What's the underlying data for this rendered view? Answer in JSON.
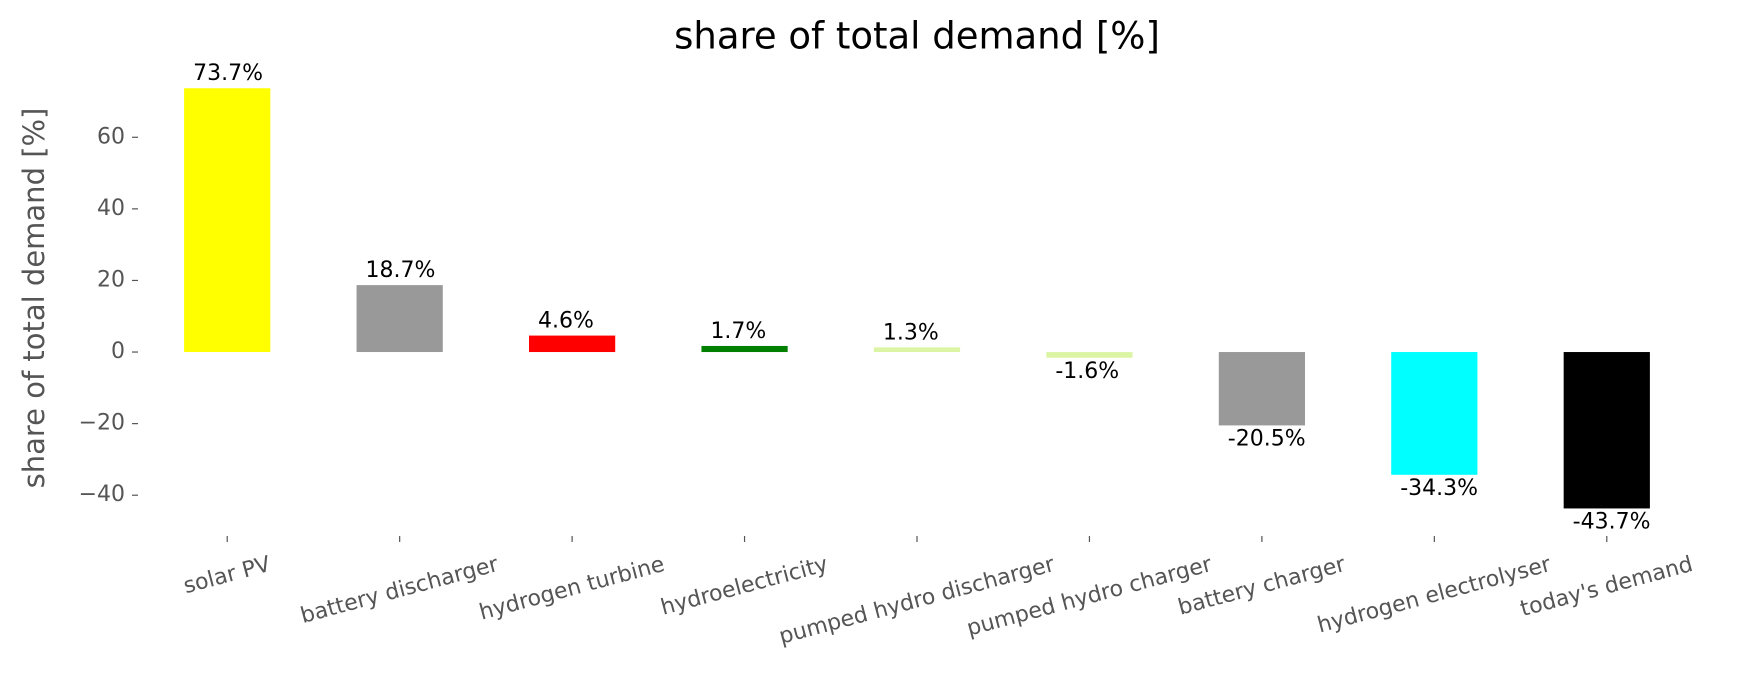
{
  "chart_data": {
    "type": "bar",
    "title": "share of total demand [%]",
    "y_label": "share of total demand [%]",
    "categories": [
      "solar PV",
      "battery discharger",
      "hydrogen turbine",
      "hydroelectricity",
      "pumped hydro discharger",
      "pumped hydro charger",
      "battery charger",
      "hydrogen electrolyser",
      "today's demand"
    ],
    "values": [
      73.7,
      18.7,
      4.6,
      1.7,
      1.3,
      -1.6,
      -20.5,
      -34.3,
      -43.7
    ],
    "value_labels": [
      "73.7%",
      "18.7%",
      "4.6%",
      "1.7%",
      "1.3%",
      "-1.6%",
      "-20.5%",
      "-34.3%",
      "-43.7%"
    ],
    "colors": [
      "#ffff00",
      "#999999",
      "#ff0000",
      "#008000",
      "#dcf5a5",
      "#dcf5a5",
      "#999999",
      "#00ffff",
      "#000000"
    ],
    "ylim": [
      -50,
      77.4
    ],
    "yticks": [
      {
        "value": -40,
        "label": "−40"
      },
      {
        "value": -20,
        "label": "−20"
      },
      0,
      20,
      40,
      60
    ],
    "grid": false
  }
}
